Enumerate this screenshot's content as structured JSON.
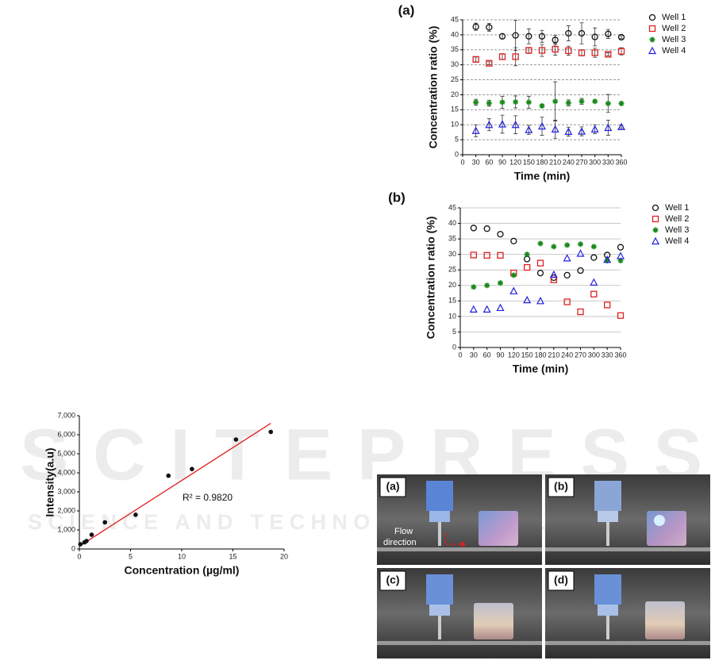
{
  "watermark": {
    "title": "SCITEPRESS",
    "subtitle": "SCIENCE AND TECHNOLOGY PUBLICATIONS"
  },
  "chart_data": [
    {
      "type": "scatter",
      "panel": "(a)",
      "ylabel": "Concentration ratio (%)",
      "xlabel": "Time (min)",
      "xlim": [
        0,
        360
      ],
      "xticks": [
        0,
        30,
        60,
        90,
        120,
        150,
        180,
        210,
        240,
        270,
        300,
        330,
        360
      ],
      "ylim": [
        0,
        45
      ],
      "yticks": [
        0,
        5,
        10,
        15,
        20,
        25,
        30,
        35,
        40,
        45
      ],
      "grid": "dashed",
      "legend": "outside-right",
      "x": [
        30,
        60,
        90,
        120,
        150,
        180,
        210,
        240,
        270,
        300,
        330,
        360
      ],
      "series": [
        {
          "name": "Well 1",
          "color": "#111111",
          "marker": "circle",
          "values": [
            42.7,
            42.5,
            39.5,
            39.8,
            39.5,
            39.5,
            38.3,
            40.5,
            40.5,
            39.3,
            40.3,
            39.2
          ],
          "errors": [
            1.2,
            1.3,
            0.8,
            5,
            2.5,
            2,
            1.5,
            2.5,
            3.5,
            3,
            1.5,
            0.5
          ]
        },
        {
          "name": "Well 2",
          "color": "#e02020",
          "marker": "square",
          "values": [
            31.8,
            30.5,
            32.7,
            32.7,
            34.8,
            34.8,
            35.2,
            34.7,
            34,
            34,
            33.5,
            34.5
          ],
          "errors": [
            0.8,
            0.5,
            1,
            3,
            1,
            2,
            2,
            1.5,
            1,
            1.5,
            0.5,
            1.2
          ]
        },
        {
          "name": "Well 3",
          "color": "#1a8a1a",
          "marker": "star",
          "values": [
            17.5,
            17.2,
            17.5,
            17.6,
            17.5,
            16.3,
            17.8,
            17.3,
            17.8,
            17.8,
            17.1,
            17.1
          ],
          "errors": [
            1,
            1,
            2,
            2,
            2,
            0.5,
            6.5,
            1,
            1,
            0.5,
            3,
            0.5
          ]
        },
        {
          "name": "Well 4",
          "color": "#2020e0",
          "marker": "triangle",
          "values": [
            8,
            10,
            10.2,
            10,
            8.3,
            9.5,
            8.5,
            7.7,
            7.8,
            8.5,
            9,
            9.3
          ],
          "errors": [
            2,
            2,
            3,
            3,
            1.5,
            3,
            3,
            1.5,
            1.5,
            1.5,
            2.5,
            0.5
          ]
        }
      ]
    },
    {
      "type": "scatter",
      "panel": "(b)",
      "ylabel": "Concentration ratio (%)",
      "xlabel": "Time (min)",
      "xlim": [
        0,
        360
      ],
      "xticks": [
        0,
        30,
        60,
        90,
        120,
        150,
        180,
        210,
        240,
        270,
        300,
        330,
        360
      ],
      "ylim": [
        0,
        45
      ],
      "yticks": [
        0,
        5,
        10,
        15,
        20,
        25,
        30,
        35,
        40,
        45
      ],
      "grid": "solid",
      "legend": "outside-right",
      "x": [
        30,
        60,
        90,
        120,
        150,
        180,
        210,
        240,
        270,
        300,
        330,
        360
      ],
      "series": [
        {
          "name": "Well 1",
          "color": "#111111",
          "marker": "circle",
          "values": [
            38.5,
            38.3,
            36.5,
            34.3,
            28.5,
            24,
            22.5,
            23.3,
            24.8,
            29,
            29.8,
            32.3
          ]
        },
        {
          "name": "Well 2",
          "color": "#e02020",
          "marker": "square",
          "values": [
            29.8,
            29.7,
            29.7,
            24,
            25.8,
            27.2,
            21.8,
            14.7,
            11.5,
            17.2,
            13.7,
            10.3
          ]
        },
        {
          "name": "Well 3",
          "color": "#1a8a1a",
          "marker": "star",
          "values": [
            19.5,
            20,
            20.8,
            23.3,
            30,
            33.5,
            32.5,
            33,
            33.3,
            32.5,
            28,
            28
          ]
        },
        {
          "name": "Well 4",
          "color": "#2020e0",
          "marker": "triangle",
          "values": [
            12.3,
            12.3,
            12.8,
            18.2,
            15.3,
            15,
            23.5,
            28.8,
            30.3,
            21,
            28.3,
            29.5
          ]
        }
      ]
    },
    {
      "type": "scatter",
      "ylabel": "Intensity(a.u)",
      "xlabel": "Concentration (µg/ml)",
      "annotation": "R² = 0.9820",
      "xlim": [
        0,
        20
      ],
      "xticks": [
        0,
        5,
        10,
        15,
        20
      ],
      "ylim": [
        0,
        7000
      ],
      "yticks": [
        0,
        {
          "value": 1000,
          "label": "1,000"
        },
        {
          "value": 2000,
          "label": "2,000"
        },
        {
          "value": 3000,
          "label": "3,000"
        },
        {
          "value": 4000,
          "label": "4,000"
        },
        {
          "value": 5000,
          "label": "5,000"
        },
        {
          "value": 6000,
          "label": "6,000"
        },
        {
          "value": 7000,
          "label": "7,000"
        }
      ],
      "x": [
        0.1,
        0.5,
        0.7,
        1.2,
        2.5,
        5.5,
        8.7,
        11,
        15.3,
        18.7
      ],
      "series": [
        {
          "color": "#111111",
          "marker": "dot",
          "values": [
            250,
            350,
            420,
            750,
            1400,
            1800,
            3850,
            4200,
            5750,
            6150
          ]
        }
      ],
      "fit": {
        "color": "#e02020",
        "x": [
          0,
          18.7
        ],
        "y": [
          150,
          6600
        ]
      }
    }
  ],
  "photos": {
    "panels": [
      "(a)",
      "(b)",
      "(c)",
      "(d)"
    ],
    "annotation": [
      "Flow",
      "direction"
    ]
  }
}
